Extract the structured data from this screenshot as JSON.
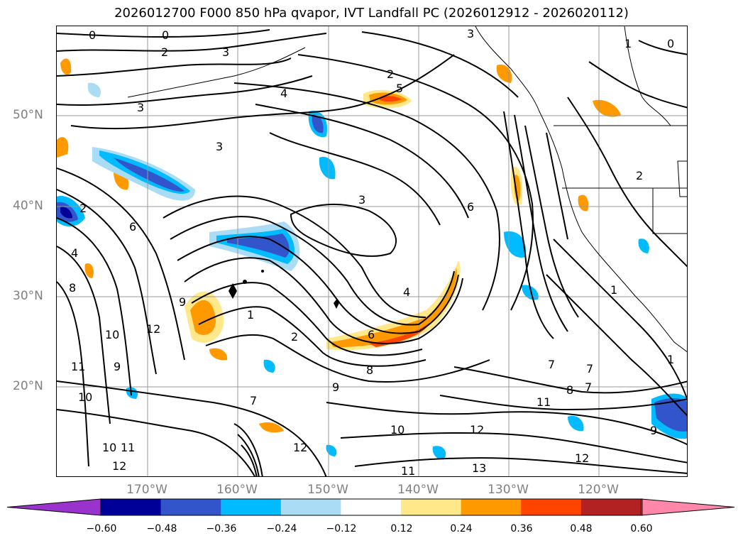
{
  "title": "2026012700 F000 850 hPa qvapor, IVT Landfall PC (2026012912 - 2026020112)",
  "lat_labels": [
    "50°N",
    "40°N",
    "30°N",
    "20°N"
  ],
  "lon_labels": [
    "170°W",
    "160°W",
    "150°W",
    "140°W",
    "130°W",
    "120°W"
  ],
  "colorbar": {
    "ticks": [
      "−0.60",
      "−0.48",
      "−0.36",
      "−0.24",
      "−0.12",
      "0.12",
      "0.24",
      "0.36",
      "0.48",
      "0.60"
    ],
    "colors": [
      "#9933cc",
      "#000099",
      "#3355cc",
      "#00bbff",
      "#aaddf5",
      "#ffffff",
      "#ffe88a",
      "#ff9900",
      "#ff4400",
      "#b22222",
      "#ff88aa"
    ]
  },
  "contour_labels": [
    "0",
    "0",
    "2",
    "3",
    "4",
    "3",
    "2",
    "5",
    "1",
    "0",
    "3",
    "3",
    "2",
    "4",
    "3",
    "6",
    "6",
    "4",
    "8",
    "9",
    "12",
    "10",
    "11",
    "9",
    "10",
    "9",
    "7",
    "8",
    "6",
    "7",
    "7",
    "7",
    "8",
    "10",
    "11",
    "12",
    "12",
    "13",
    "11",
    "1",
    "1",
    "2",
    "9",
    "12",
    "11",
    "10",
    "12",
    "2",
    "1"
  ],
  "field_colors": {
    "positive_light": "#ffe88a",
    "positive_mid": "#ff9900",
    "positive_strong": "#ff4400",
    "negative_light": "#aaddf5",
    "negative_mid": "#00bbff",
    "negative_strong": "#3355cc",
    "negative_max": "#000099"
  }
}
